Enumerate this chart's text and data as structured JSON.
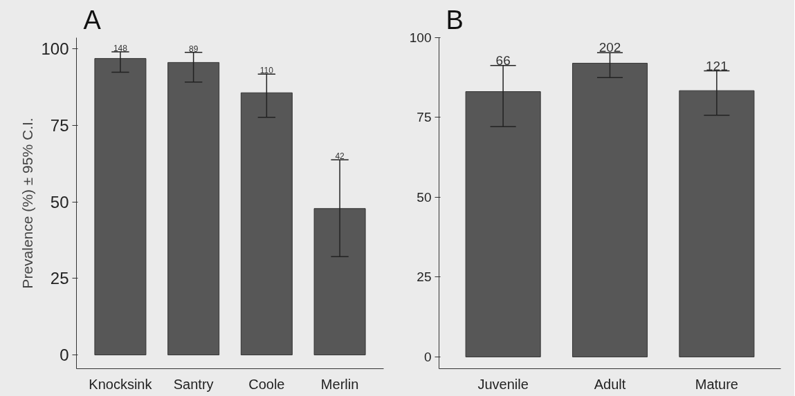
{
  "chart_data": [
    {
      "type": "bar",
      "title": "A",
      "ylabel": "Prevalence (%) ± 95% C.I.",
      "categories": [
        "Knocksink",
        "Santry",
        "Coole",
        "Merlin"
      ],
      "values": [
        96.8,
        95.5,
        85.6,
        47.8
      ],
      "color": "#575757",
      "errors": [
        [
          92.3,
          99.0
        ],
        [
          89.1,
          98.8
        ],
        [
          77.6,
          91.7
        ],
        [
          32.1,
          63.7
        ]
      ],
      "ylim": [
        -4.5,
        103.6
      ],
      "yticks": [
        0,
        25,
        50,
        75,
        100
      ],
      "grid": false,
      "annotations": [
        {
          "text": "148",
          "x": "Knocksink",
          "y": 99.0
        },
        {
          "text": "89",
          "x": "Santry",
          "y": 98.8
        },
        {
          "text": "110",
          "x": "Coole",
          "y": 91.7
        },
        {
          "text": "42",
          "x": "Merlin",
          "y": 63.7
        }
      ]
    },
    {
      "type": "bar",
      "title": "B",
      "categories": [
        "Juvenile",
        "Adult",
        "Mature"
      ],
      "values": [
        83.1,
        92.0,
        83.4
      ],
      "color": "#575757",
      "errors": [
        [
          72.1,
          91.3
        ],
        [
          87.5,
          95.3
        ],
        [
          75.7,
          89.6
        ]
      ],
      "ylim": [
        -3.7,
        100
      ],
      "yticks": [
        0,
        25,
        50,
        75,
        100
      ],
      "grid": false,
      "annotations": [
        {
          "text": "66",
          "x": "Juvenile",
          "y": 91.3
        },
        {
          "text": "202",
          "x": "Adult",
          "y": 95.3
        },
        {
          "text": "121",
          "x": "Mature",
          "y": 89.6
        }
      ]
    }
  ]
}
